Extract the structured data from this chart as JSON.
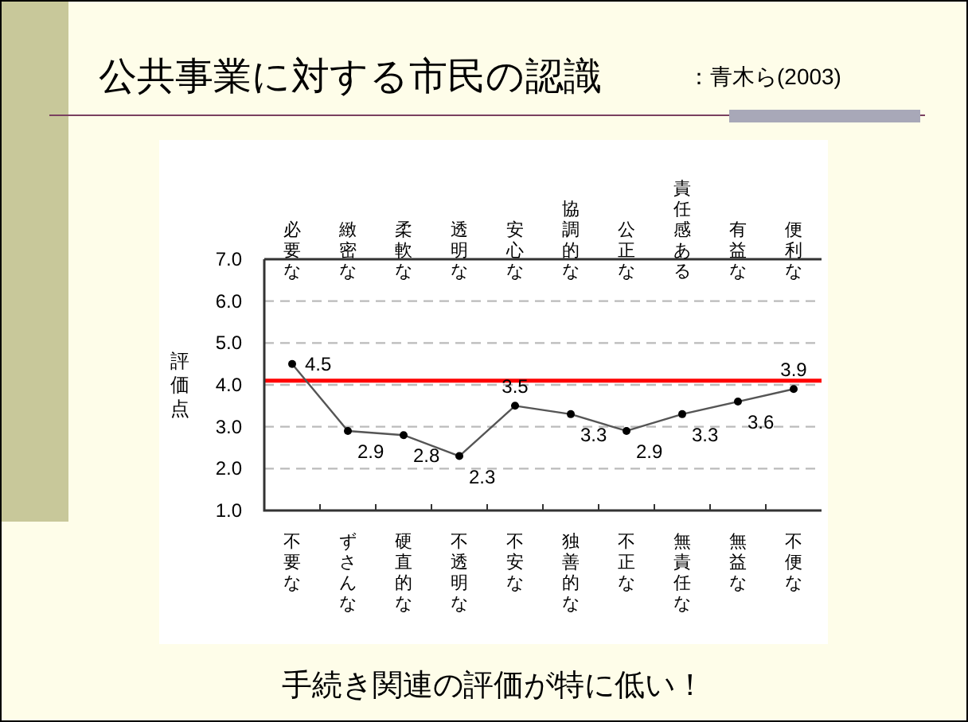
{
  "chart_data": {
    "type": "line",
    "title": "公共事業に対する市民の認識",
    "subtitle": "：青木ら(2003)",
    "ylabel": "評価点",
    "annotations": [
      "必要な",
      "緻密な",
      "柔軟な",
      "透明な",
      "安心な",
      "協調的な",
      "公正な",
      "責任感ある",
      "有益な",
      "便利な",
      "手続き関連の評価が特に低い！"
    ],
    "categories": [
      "不要な",
      "ずさんな",
      "硬直的な",
      "不透明な",
      "不安な",
      "独善的な",
      "不正な",
      "無責任な",
      "無益な",
      "不便な"
    ],
    "series": [
      {
        "color": "#000000",
        "values": [
          4.5,
          2.9,
          2.8,
          2.3,
          3.5,
          3.3,
          2.9,
          3.3,
          3.6,
          3.9
        ]
      }
    ],
    "ylim": [
      1.0,
      7.0
    ],
    "yticks": [
      {
        "value": 1,
        "label": "1.0"
      },
      {
        "value": 2,
        "label": "2.0"
      },
      {
        "value": 3,
        "label": "3.0"
      },
      {
        "value": 4,
        "label": "4.0"
      },
      {
        "value": 5,
        "label": "5.0"
      },
      {
        "value": 6,
        "label": "6.0"
      },
      {
        "value": 7,
        "label": "7.0"
      }
    ],
    "grid": "y",
    "marker": "circle",
    "line_style": "solid",
    "data_labels": true,
    "ref_lines": [
      {
        "axis": "y",
        "value": 4.1,
        "color": "#ff0000"
      }
    ]
  }
}
